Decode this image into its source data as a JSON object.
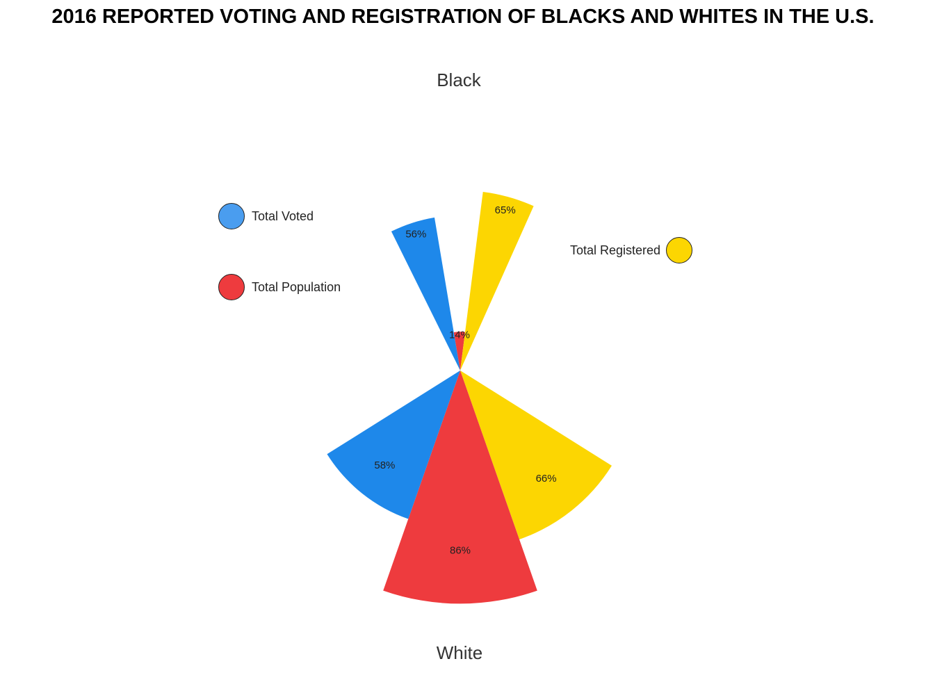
{
  "colors": {
    "voted": "#1E88EA",
    "population": "#EE3B3E",
    "registered": "#FCD602",
    "legend_voted": "#4A9DEF"
  },
  "legend": {
    "voted": "Total Voted",
    "population": "Total Population",
    "registered": "Total Registered"
  },
  "chart_data": {
    "type": "pie",
    "title": "2016 REPORTED VOTING AND REGISTRATION OF BLACKS AND WHITES IN THE U.S.",
    "groups": [
      {
        "name": "Black",
        "slices": [
          {
            "series": "Total Voted",
            "value": 56,
            "label": "56%"
          },
          {
            "series": "Total Population",
            "value": 14,
            "label": "14%"
          },
          {
            "series": "Total Registered",
            "value": 65,
            "label": "65%"
          }
        ]
      },
      {
        "name": "White",
        "slices": [
          {
            "series": "Total Voted",
            "value": 58,
            "label": "58%"
          },
          {
            "series": "Total Population",
            "value": 86,
            "label": "86%"
          },
          {
            "series": "Total Registered",
            "value": 66,
            "label": "66%"
          }
        ]
      }
    ]
  }
}
